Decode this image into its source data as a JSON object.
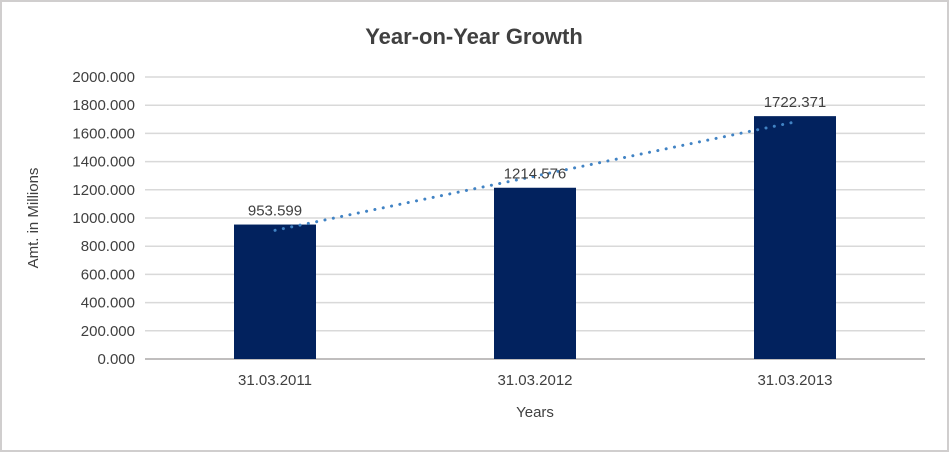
{
  "chart_data": {
    "type": "bar",
    "title": "Year-on-Year Growth",
    "categories": [
      "31.03.2011",
      "31.03.2012",
      "31.03.2013"
    ],
    "values": [
      953.599,
      1214.576,
      1722.371
    ],
    "data_labels": [
      "953.599",
      "1214.576",
      "1722.371"
    ],
    "xlabel": "Years",
    "ylabel": "Amt. in Millions",
    "ylim": [
      0,
      2000
    ],
    "ytick_step": 200,
    "ytick_labels": [
      "0.000",
      "200.000",
      "400.000",
      "600.000",
      "800.000",
      "1000.000",
      "1200.000",
      "1400.000",
      "1600.000",
      "1800.000",
      "2000.000"
    ],
    "grid": true,
    "legend": "none",
    "trendline": {
      "type": "linear",
      "style": "dotted"
    },
    "colors": {
      "bar": "#02225E",
      "trendline": "#4183C4",
      "gridline": "#D9D9D9",
      "axis_line": "#C0BEBE",
      "text": "#404040",
      "frame_border": "#D0CECE",
      "background": "#FFFFFF"
    }
  }
}
